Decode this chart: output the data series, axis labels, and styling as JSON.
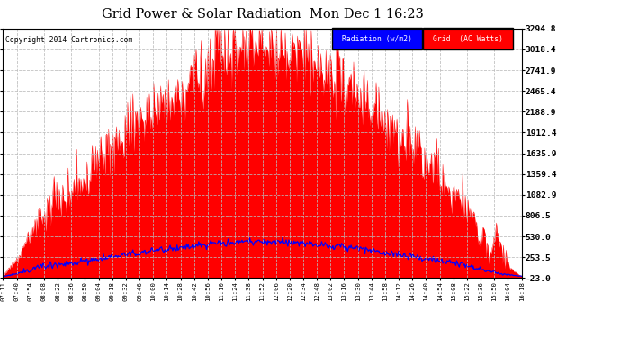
{
  "title": "Grid Power & Solar Radiation  Mon Dec 1 16:23",
  "copyright": "Copyright 2014 Cartronics.com",
  "ylabel_right": [
    "3294.8",
    "3018.4",
    "2741.9",
    "2465.4",
    "2188.9",
    "1912.4",
    "1635.9",
    "1359.4",
    "1082.9",
    "806.5",
    "530.0",
    "253.5",
    "-23.0"
  ],
  "ymin": -23.0,
  "ymax": 3294.8,
  "legend_radiation": "Radiation (w/m2)",
  "legend_grid": "Grid  (AC Watts)",
  "bg_color": "#ffffff",
  "plot_bg": "#ffffff",
  "grid_color": "#bbbbbb",
  "fill_color": "#ff0000",
  "radiation_color": "#0000ff",
  "xtick_labels": [
    "07:11",
    "07:40",
    "07:54",
    "08:08",
    "08:22",
    "08:36",
    "08:50",
    "09:04",
    "09:18",
    "09:32",
    "09:46",
    "10:00",
    "10:14",
    "10:28",
    "10:42",
    "10:56",
    "11:10",
    "11:24",
    "11:38",
    "11:52",
    "12:06",
    "12:20",
    "12:34",
    "12:48",
    "13:02",
    "13:16",
    "13:30",
    "13:44",
    "13:58",
    "14:12",
    "14:26",
    "14:40",
    "14:54",
    "15:08",
    "15:22",
    "15:36",
    "15:50",
    "16:04",
    "16:18"
  ],
  "num_points": 600,
  "radiation_max_wm2": 310,
  "radiation_display_max": 530.0,
  "radiation_display_min": -23.0
}
